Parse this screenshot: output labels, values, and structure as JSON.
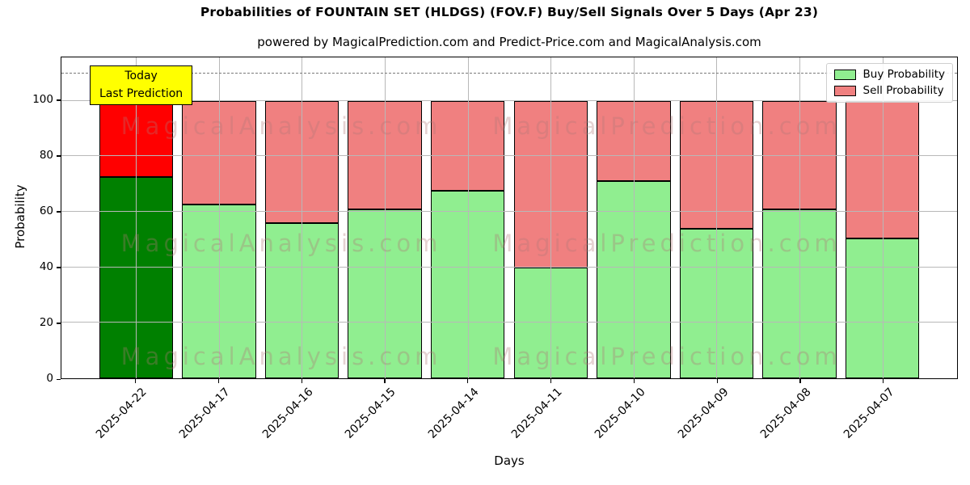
{
  "title": "Probabilities of FOUNTAIN SET (HLDGS) (FOV.F) Buy/Sell Signals Over 5 Days (Apr 23)",
  "subtitle": "powered by MagicalPrediction.com and Predict-Price.com and MagicalAnalysis.com",
  "axes": {
    "x_label": "Days",
    "y_label": "Probability",
    "y_ticks": [
      0,
      20,
      40,
      60,
      80,
      100
    ],
    "y_max": 115.6,
    "dashed_line_y": 110,
    "grid_color": "#b8b8b8"
  },
  "legend": {
    "items": [
      {
        "label": "Buy Probability",
        "color": "#90ee90"
      },
      {
        "label": "Sell Probability",
        "color": "#f08080"
      }
    ]
  },
  "annotation": {
    "line1": "Today",
    "line2": "Last Prediction",
    "bg_color": "#ffff00"
  },
  "watermarks": {
    "left": "MagicalAnalysis.com",
    "right": "MagicalPrediction.com"
  },
  "chart_data": {
    "type": "bar",
    "stacked": true,
    "title": "Probabilities of FOUNTAIN SET (HLDGS) (FOV.F) Buy/Sell Signals Over 5 Days (Apr 23)",
    "xlabel": "Days",
    "ylabel": "Probability",
    "ylim": [
      0,
      115.6
    ],
    "grid": true,
    "legend_position": "upper right",
    "categories": [
      "2025-04-22",
      "2025-04-17",
      "2025-04-16",
      "2025-04-15",
      "2025-04-14",
      "2025-04-11",
      "2025-04-10",
      "2025-04-09",
      "2025-04-08",
      "2025-04-07"
    ],
    "series": [
      {
        "name": "Buy Probability",
        "values": [
          72.5,
          62.5,
          56,
          61,
          67.5,
          40,
          71,
          54,
          61,
          50.5
        ],
        "color": "#90ee90",
        "today_color": "#008000"
      },
      {
        "name": "Sell Probability",
        "values": [
          27.5,
          37.5,
          44,
          39,
          32.5,
          60,
          29,
          46,
          39,
          49.5
        ],
        "color": "#f08080",
        "today_color": "#ff0000"
      }
    ],
    "bar_edge_color": "#000000",
    "today_index": 0,
    "threshold_dashed_line": 110
  }
}
